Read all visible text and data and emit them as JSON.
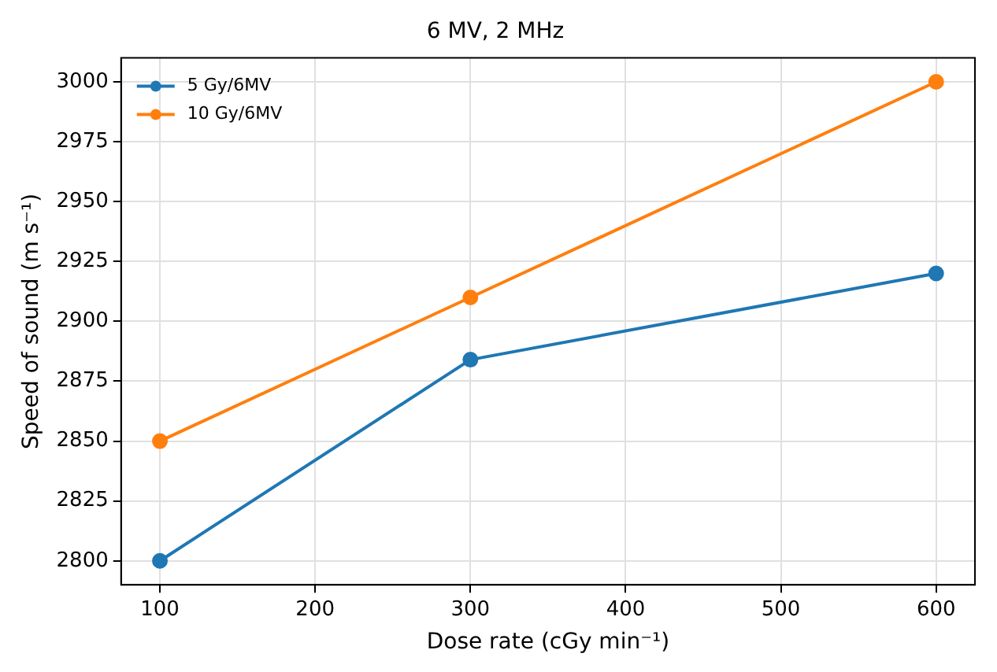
{
  "chart_data": {
    "type": "line",
    "title": "6 MV, 2 MHz",
    "xlabel": "Dose rate (cGy min⁻¹)",
    "ylabel": "Speed of sound (m s⁻¹)",
    "x": [
      100,
      300,
      600
    ],
    "series": [
      {
        "name": "5 Gy/6MV",
        "color": "#1f77b4",
        "values": [
          2800,
          2884,
          2920
        ]
      },
      {
        "name": "10 Gy/6MV",
        "color": "#ff7f0e",
        "values": [
          2850,
          2910,
          3000
        ]
      }
    ],
    "xlim": [
      75,
      625
    ],
    "xticks": [
      100,
      200,
      300,
      400,
      500,
      600
    ],
    "ylim": [
      2790,
      3010
    ],
    "yticks": [
      2800,
      2825,
      2850,
      2875,
      2900,
      2925,
      2950,
      2975,
      3000
    ],
    "grid": true,
    "legend": "top left",
    "marker": "circle",
    "line_style": "solid"
  }
}
